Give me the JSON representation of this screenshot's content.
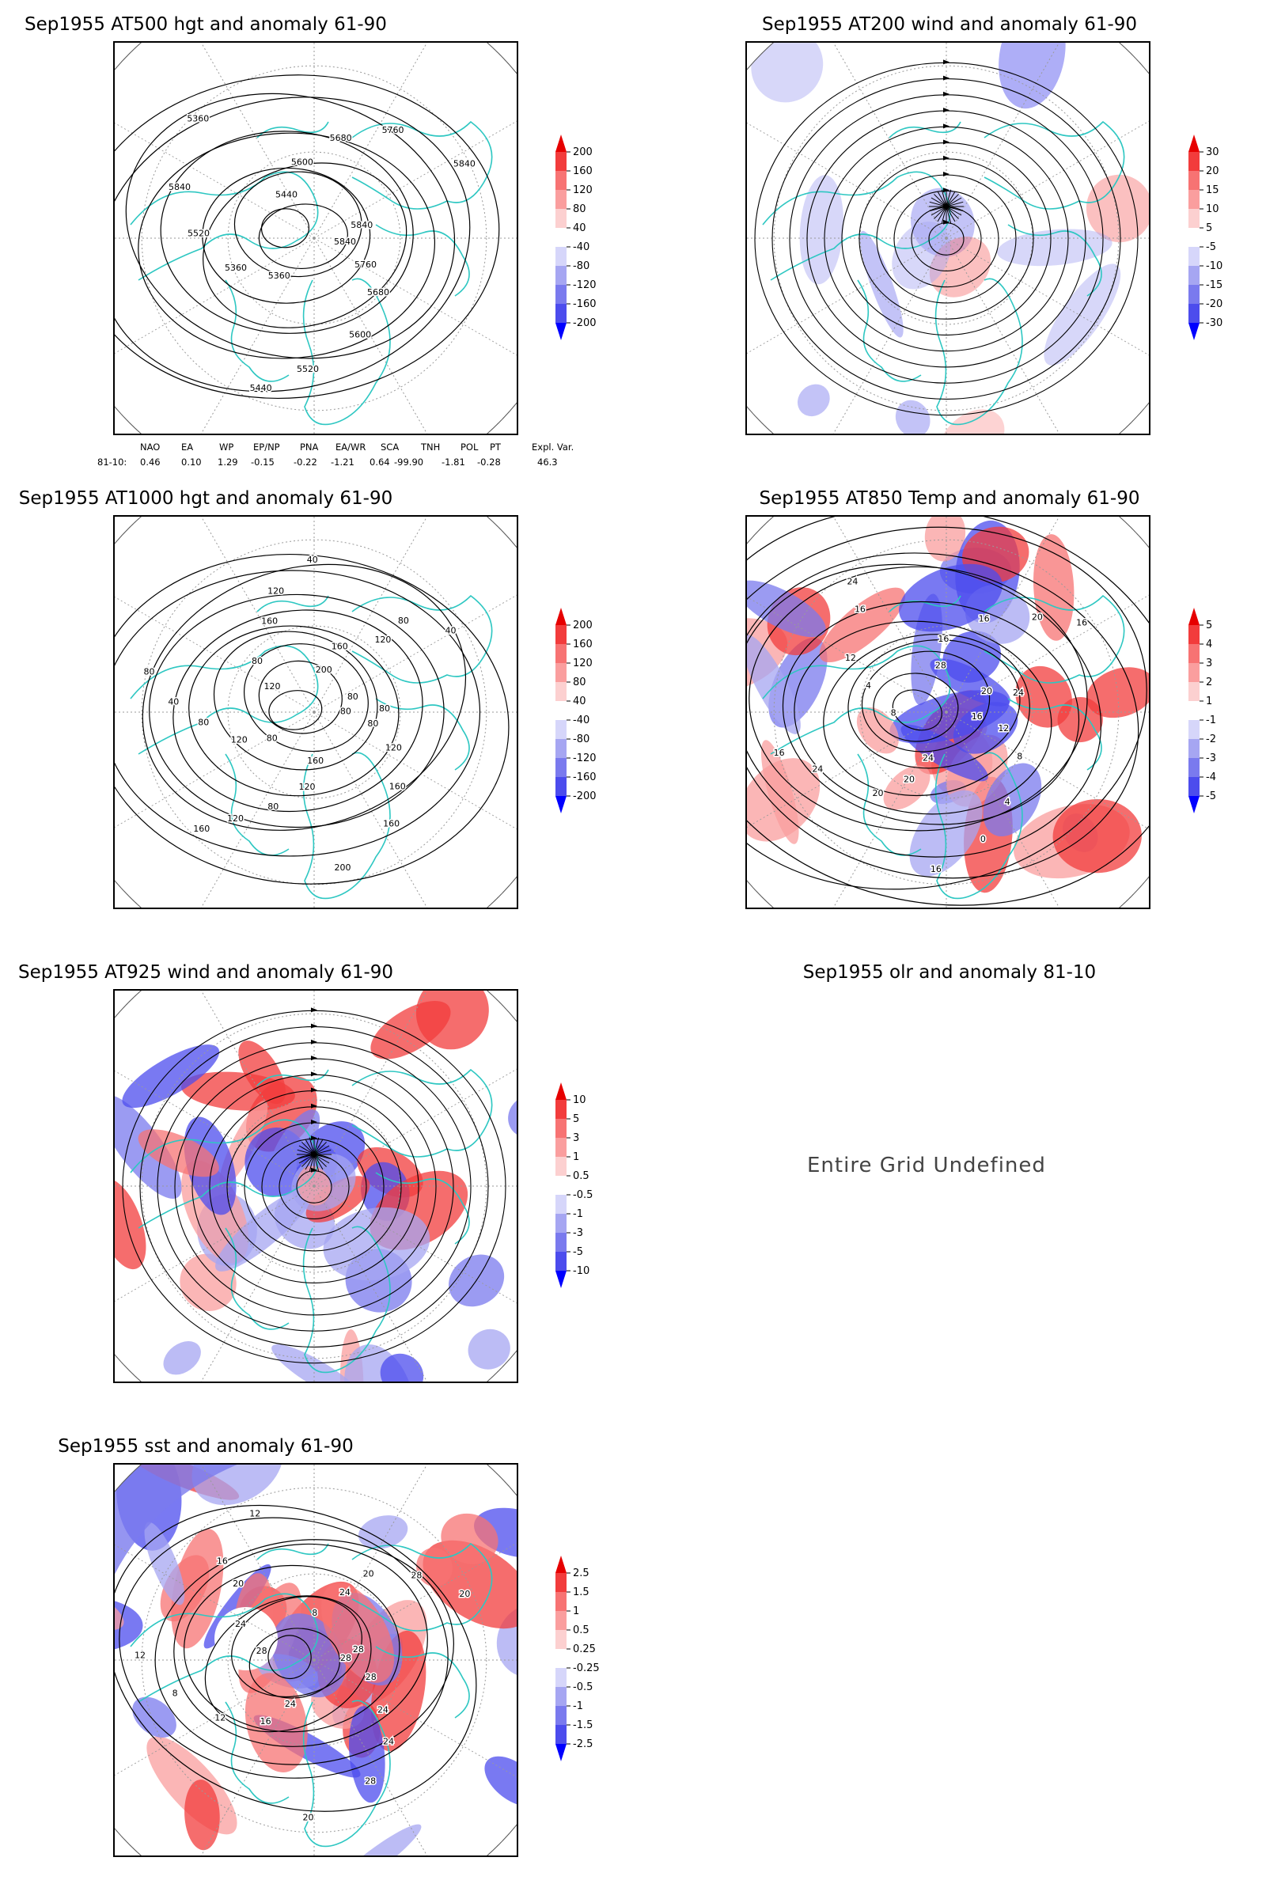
{
  "panels": [
    {
      "id": "p1",
      "title": "Sep1955 AT500 hgt and anomaly 61-90",
      "contour_labels": [
        "5840",
        "5760",
        "5680",
        "5600",
        "5520",
        "5440",
        "5360",
        "5360",
        "5520",
        "5840",
        "5360",
        "5440",
        "5600",
        "5680",
        "5760",
        "5840",
        "5840"
      ],
      "colorbar": [
        "200",
        "160",
        "120",
        "80",
        "40",
        "-40",
        "-80",
        "-120",
        "-160",
        "-200"
      ]
    },
    {
      "id": "p2",
      "title": "Sep1955 AT200 wind and anomaly 61-90",
      "contour_labels": [],
      "colorbar": [
        "30",
        "20",
        "15",
        "10",
        "5",
        "-5",
        "-10",
        "-15",
        "-20",
        "-30"
      ]
    },
    {
      "id": "p3",
      "title": "Sep1955 AT1000 hgt and anomaly 61-90",
      "contour_labels": [
        "80",
        "80",
        "120",
        "160",
        "160",
        "200",
        "160",
        "120",
        "80",
        "120",
        "160",
        "80",
        "120",
        "80",
        "40",
        "80",
        "120",
        "80",
        "160",
        "120",
        "40",
        "200",
        "160",
        "120",
        "80",
        "40",
        "80",
        "80"
      ],
      "colorbar": [
        "200",
        "160",
        "120",
        "80",
        "40",
        "-40",
        "-80",
        "-120",
        "-160",
        "-200"
      ]
    },
    {
      "id": "p4",
      "title": "Sep1955 AT850 Temp and anomaly 61-90",
      "contour_labels": [
        "16",
        "12",
        "8",
        "4",
        "0",
        "16",
        "24",
        "20",
        "20",
        "24",
        "16",
        "8",
        "4",
        "12",
        "16",
        "24",
        "28",
        "16",
        "16",
        "20",
        "16",
        "20",
        "24"
      ],
      "colorbar": [
        "5",
        "4",
        "3",
        "2",
        "1",
        "-1",
        "-2",
        "-3",
        "-4",
        "-5"
      ]
    },
    {
      "id": "p5",
      "title": "Sep1955 AT925 wind and anomaly 61-90",
      "contour_labels": [],
      "colorbar": [
        "10",
        "5",
        "3",
        "1",
        "0.5",
        "-0.5",
        "-1",
        "-3",
        "-5",
        "-10"
      ]
    },
    {
      "id": "p6",
      "title": "Sep1955 olr and anomaly 81-10",
      "message": "Entire Grid Undefined"
    },
    {
      "id": "p7",
      "title": "Sep1955 sst and anomaly 61-90",
      "contour_labels": [
        "28",
        "28",
        "24",
        "24",
        "28",
        "20",
        "24",
        "16",
        "12",
        "8",
        "12",
        "28",
        "24",
        "20",
        "16",
        "12",
        "8",
        "24",
        "20",
        "28",
        "20",
        "28"
      ],
      "colorbar": [
        "2.5",
        "1.5",
        "1",
        "0.5",
        "0.25",
        "-0.25",
        "-0.5",
        "-1",
        "-1.5",
        "-2.5"
      ]
    }
  ],
  "teleconnection_indices": {
    "row_label": "81-10:",
    "items": [
      {
        "name": "NAO",
        "value": "0.46"
      },
      {
        "name": "EA",
        "value": "0.10"
      },
      {
        "name": "WP",
        "value": "1.29"
      },
      {
        "name": "EP/NP",
        "value": "-0.15"
      },
      {
        "name": "PNA",
        "value": "-0.22"
      },
      {
        "name": "EA/WR",
        "value": "-1.21"
      },
      {
        "name": "SCA",
        "value": "0.64"
      },
      {
        "name": "TNH",
        "value": "-99.90"
      },
      {
        "name": "POL",
        "value": "-1.81"
      },
      {
        "name": "PT",
        "value": "-0.28"
      },
      {
        "name": "Expl. Var.",
        "value": "46.3"
      }
    ]
  },
  "colors": {
    "coast": "#2ec7c2",
    "contour": "#000000",
    "frame": "#000000",
    "ramp": [
      "#e60000",
      "#f23c3c",
      "#f77373",
      "#fa9e9e",
      "#fcd0d0",
      "#ffffff",
      "#d6d6fa",
      "#a6a6f2",
      "#7a7aee",
      "#4c4ced",
      "#0000ff"
    ]
  }
}
